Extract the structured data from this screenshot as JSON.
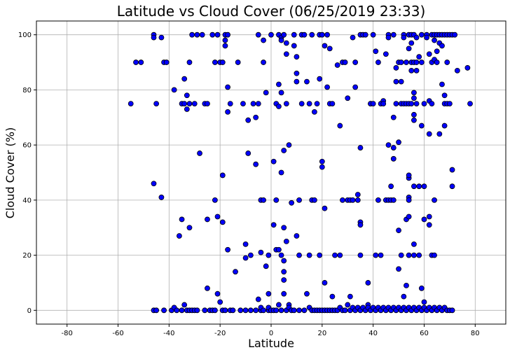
{
  "chart_data": {
    "type": "scatter",
    "title": "Latitude vs Cloud Cover (06/25/2019 23:33)",
    "xlabel": "Latitude",
    "ylabel": "Cloud Cover (%)",
    "xlim": [
      -92,
      92
    ],
    "ylim": [
      -5,
      105
    ],
    "xticks": [
      -80,
      -60,
      -40,
      -20,
      0,
      20,
      40,
      60,
      80
    ],
    "yticks": [
      0,
      20,
      40,
      60,
      80,
      100
    ],
    "grid": true,
    "marker_fill": "#0000ff",
    "marker_edge": "#000000",
    "points": [
      [
        -55,
        75
      ],
      [
        -53,
        90
      ],
      [
        -51,
        90
      ],
      [
        -46,
        100
      ],
      [
        -46,
        99
      ],
      [
        -45,
        75
      ],
      [
        -46,
        46
      ],
      [
        -43,
        41
      ],
      [
        -43,
        99
      ],
      [
        -42,
        90
      ],
      [
        -41,
        90
      ],
      [
        -38,
        80
      ],
      [
        -36,
        27
      ],
      [
        -35,
        33
      ],
      [
        -35,
        75
      ],
      [
        -34,
        75
      ],
      [
        -34,
        84
      ],
      [
        -33,
        78
      ],
      [
        -33,
        73
      ],
      [
        -32,
        75
      ],
      [
        -32,
        90
      ],
      [
        -32,
        30
      ],
      [
        -31,
        100
      ],
      [
        -30,
        75
      ],
      [
        -29,
        100
      ],
      [
        -28,
        57
      ],
      [
        -27,
        100
      ],
      [
        -26,
        75
      ],
      [
        -25,
        75
      ],
      [
        -25,
        33
      ],
      [
        -23,
        100
      ],
      [
        -22,
        90
      ],
      [
        -21,
        100
      ],
      [
        -20,
        90
      ],
      [
        -19,
        90
      ],
      [
        -18,
        100
      ],
      [
        -17,
        100
      ],
      [
        -22,
        40
      ],
      [
        -21,
        34
      ],
      [
        -19,
        32
      ],
      [
        -19,
        49
      ],
      [
        -18,
        98
      ],
      [
        -18,
        96
      ],
      [
        -17,
        81
      ],
      [
        -17,
        22
      ],
      [
        -17,
        72
      ],
      [
        -16,
        75
      ],
      [
        -13,
        90
      ],
      [
        -11,
        75
      ],
      [
        -10,
        24
      ],
      [
        -10,
        19
      ],
      [
        -9,
        57
      ],
      [
        -9,
        69
      ],
      [
        -8,
        20
      ],
      [
        -7,
        75
      ],
      [
        -6,
        53
      ],
      [
        -6,
        70
      ],
      [
        -5,
        100
      ],
      [
        -5,
        75
      ],
      [
        -4,
        40
      ],
      [
        -4,
        21
      ],
      [
        -3,
        98
      ],
      [
        -3,
        90
      ],
      [
        -3,
        40
      ],
      [
        -2,
        16
      ],
      [
        -2,
        79
      ],
      [
        -1,
        20
      ],
      [
        -1,
        6
      ],
      [
        0,
        100
      ],
      [
        1,
        54
      ],
      [
        1,
        31
      ],
      [
        2,
        22
      ],
      [
        2,
        75
      ],
      [
        2,
        40
      ],
      [
        3,
        74
      ],
      [
        3,
        22
      ],
      [
        3,
        100
      ],
      [
        3,
        82
      ],
      [
        4,
        99
      ],
      [
        4,
        98
      ],
      [
        4,
        79
      ],
      [
        4,
        50
      ],
      [
        4,
        20
      ],
      [
        5,
        100
      ],
      [
        5,
        58
      ],
      [
        5,
        14
      ],
      [
        5,
        11
      ],
      [
        5,
        6
      ],
      [
        5,
        30
      ],
      [
        6,
        97
      ],
      [
        6,
        93
      ],
      [
        6,
        25
      ],
      [
        6,
        75
      ],
      [
        7,
        2
      ],
      [
        7,
        60
      ],
      [
        8,
        39
      ],
      [
        9,
        100
      ],
      [
        9,
        96
      ],
      [
        10,
        92
      ],
      [
        10,
        86
      ],
      [
        10,
        83
      ],
      [
        10,
        27
      ],
      [
        11,
        40
      ],
      [
        11,
        20
      ],
      [
        12,
        100
      ],
      [
        12,
        75
      ],
      [
        13,
        100
      ],
      [
        14,
        83
      ],
      [
        14,
        6
      ],
      [
        15,
        75
      ],
      [
        15,
        20
      ],
      [
        16,
        100
      ],
      [
        16,
        40
      ],
      [
        17,
        40
      ],
      [
        17,
        72
      ],
      [
        18,
        75
      ],
      [
        19,
        100
      ],
      [
        19,
        84
      ],
      [
        19,
        20
      ],
      [
        20,
        100
      ],
      [
        20,
        54
      ],
      [
        20,
        52
      ],
      [
        21,
        96
      ],
      [
        21,
        10
      ],
      [
        21,
        37
      ],
      [
        22,
        100
      ],
      [
        22,
        81
      ],
      [
        23,
        75
      ],
      [
        23,
        95
      ],
      [
        24,
        75
      ],
      [
        24,
        5
      ],
      [
        25,
        20
      ],
      [
        26,
        89
      ],
      [
        27,
        67
      ],
      [
        27,
        20
      ],
      [
        28,
        90
      ],
      [
        28,
        40
      ],
      [
        29,
        90
      ],
      [
        30,
        40
      ],
      [
        30,
        77
      ],
      [
        31,
        5
      ],
      [
        31,
        40
      ],
      [
        32,
        99
      ],
      [
        32,
        40
      ],
      [
        33,
        90
      ],
      [
        33,
        81
      ],
      [
        34,
        42
      ],
      [
        34,
        40
      ],
      [
        35,
        59
      ],
      [
        35,
        32
      ],
      [
        35,
        31
      ],
      [
        35,
        20
      ],
      [
        35,
        100
      ],
      [
        36,
        100
      ],
      [
        37,
        100
      ],
      [
        38,
        10
      ],
      [
        38,
        2
      ],
      [
        39,
        75
      ],
      [
        39,
        75
      ],
      [
        40,
        100
      ],
      [
        40,
        75
      ],
      [
        41,
        94
      ],
      [
        41,
        20
      ],
      [
        42,
        90
      ],
      [
        42,
        40
      ],
      [
        43,
        75
      ],
      [
        43,
        20
      ],
      [
        44,
        76
      ],
      [
        44,
        75
      ],
      [
        45,
        93
      ],
      [
        45,
        40
      ],
      [
        46,
        100
      ],
      [
        46,
        99
      ],
      [
        46,
        60
      ],
      [
        46,
        40
      ],
      [
        47,
        45
      ],
      [
        47,
        40
      ],
      [
        48,
        70
      ],
      [
        48,
        59
      ],
      [
        48,
        55
      ],
      [
        48,
        40
      ],
      [
        48,
        100
      ],
      [
        49,
        88
      ],
      [
        49,
        83
      ],
      [
        49,
        75
      ],
      [
        50,
        90
      ],
      [
        50,
        61
      ],
      [
        50,
        29
      ],
      [
        50,
        15
      ],
      [
        51,
        90
      ],
      [
        51,
        83
      ],
      [
        51,
        75
      ],
      [
        51,
        20
      ],
      [
        52,
        100
      ],
      [
        52,
        99
      ],
      [
        52,
        75
      ],
      [
        52,
        5
      ],
      [
        53,
        90
      ],
      [
        53,
        75
      ],
      [
        53,
        33
      ],
      [
        53,
        9
      ],
      [
        54,
        100
      ],
      [
        54,
        95
      ],
      [
        54,
        75
      ],
      [
        54,
        48
      ],
      [
        54,
        49
      ],
      [
        54,
        41
      ],
      [
        54,
        40
      ],
      [
        54,
        34
      ],
      [
        54,
        20
      ],
      [
        55,
        100
      ],
      [
        55,
        90
      ],
      [
        55,
        87
      ],
      [
        55,
        75
      ],
      [
        55,
        97
      ],
      [
        56,
        100
      ],
      [
        56,
        90
      ],
      [
        56,
        77
      ],
      [
        56,
        79
      ],
      [
        56,
        71
      ],
      [
        56,
        69
      ],
      [
        56,
        45
      ],
      [
        56,
        24
      ],
      [
        56,
        20
      ],
      [
        57,
        99
      ],
      [
        57,
        90
      ],
      [
        57,
        87
      ],
      [
        57,
        75
      ],
      [
        58,
        92
      ],
      [
        58,
        45
      ],
      [
        58,
        20
      ],
      [
        59,
        100
      ],
      [
        59,
        90
      ],
      [
        59,
        67
      ],
      [
        59,
        8
      ],
      [
        60,
        75
      ],
      [
        60,
        45
      ],
      [
        60,
        33
      ],
      [
        60,
        3
      ],
      [
        61,
        100
      ],
      [
        61,
        99
      ],
      [
        62,
        93
      ],
      [
        62,
        76
      ],
      [
        62,
        64
      ],
      [
        62,
        34
      ],
      [
        62,
        31
      ],
      [
        63,
        100
      ],
      [
        63,
        90
      ],
      [
        63,
        75
      ],
      [
        63,
        20
      ],
      [
        64,
        100
      ],
      [
        64,
        98
      ],
      [
        64,
        91
      ],
      [
        64,
        40
      ],
      [
        64,
        20
      ],
      [
        65,
        100
      ],
      [
        65,
        94
      ],
      [
        65,
        90
      ],
      [
        66,
        100
      ],
      [
        66,
        97
      ],
      [
        66,
        64
      ],
      [
        67,
        100
      ],
      [
        67,
        96
      ],
      [
        67,
        82
      ],
      [
        68,
        100
      ],
      [
        68,
        75
      ],
      [
        68,
        67
      ],
      [
        68,
        78
      ],
      [
        69,
        100
      ],
      [
        69,
        90
      ],
      [
        69,
        75
      ],
      [
        70,
        100
      ],
      [
        70,
        75
      ],
      [
        71,
        100
      ],
      [
        71,
        51
      ],
      [
        71,
        45
      ],
      [
        72,
        100
      ],
      [
        73,
        87
      ],
      [
        77,
        88
      ],
      [
        78,
        75
      ],
      [
        -46,
        0
      ],
      [
        -45,
        0
      ],
      [
        -42,
        0
      ],
      [
        -39,
        0
      ],
      [
        -38,
        1
      ],
      [
        -37,
        0
      ],
      [
        -35,
        0
      ],
      [
        -34,
        2
      ],
      [
        -33,
        0
      ],
      [
        -32,
        0
      ],
      [
        -31,
        0
      ],
      [
        -30,
        0
      ],
      [
        -29,
        0
      ],
      [
        -26,
        0
      ],
      [
        -25,
        8
      ],
      [
        -24,
        0
      ],
      [
        -23,
        0
      ],
      [
        -22,
        0
      ],
      [
        -21,
        6
      ],
      [
        -20,
        3
      ],
      [
        -19,
        0
      ],
      [
        -18,
        0
      ],
      [
        -16,
        0
      ],
      [
        -15,
        0
      ],
      [
        -14,
        14
      ],
      [
        -12,
        0
      ],
      [
        -10,
        0
      ],
      [
        -8,
        0
      ],
      [
        -6,
        0
      ],
      [
        -5,
        4
      ],
      [
        -4,
        0
      ],
      [
        -4,
        1
      ],
      [
        -3,
        0
      ],
      [
        -1,
        0
      ],
      [
        -1,
        1
      ],
      [
        0,
        0
      ],
      [
        1,
        0
      ],
      [
        2,
        0
      ],
      [
        3,
        2
      ],
      [
        4,
        0
      ],
      [
        5,
        18
      ],
      [
        6,
        0
      ],
      [
        7,
        1
      ],
      [
        8,
        0
      ],
      [
        9,
        0
      ],
      [
        11,
        0
      ],
      [
        13,
        0
      ],
      [
        15,
        1
      ],
      [
        16,
        0
      ],
      [
        17,
        0
      ],
      [
        18,
        0
      ],
      [
        19,
        0
      ],
      [
        20,
        0
      ],
      [
        21,
        0
      ],
      [
        22,
        0
      ],
      [
        23,
        0
      ],
      [
        24,
        0
      ],
      [
        25,
        0
      ],
      [
        26,
        0
      ],
      [
        27,
        1
      ],
      [
        28,
        0
      ],
      [
        29,
        0
      ],
      [
        30,
        2
      ],
      [
        31,
        0
      ],
      [
        32,
        1
      ],
      [
        33,
        0
      ],
      [
        34,
        1
      ],
      [
        35,
        0
      ],
      [
        36,
        1
      ],
      [
        37,
        0
      ],
      [
        38,
        1
      ],
      [
        39,
        0
      ],
      [
        40,
        1
      ],
      [
        41,
        0
      ],
      [
        42,
        1
      ],
      [
        43,
        0
      ],
      [
        44,
        1
      ],
      [
        45,
        0
      ],
      [
        46,
        1
      ],
      [
        47,
        0
      ],
      [
        48,
        1
      ],
      [
        49,
        0
      ],
      [
        50,
        1
      ],
      [
        51,
        0
      ],
      [
        52,
        1
      ],
      [
        53,
        0
      ],
      [
        54,
        1
      ],
      [
        55,
        0
      ],
      [
        56,
        1
      ],
      [
        57,
        0
      ],
      [
        58,
        1
      ],
      [
        59,
        0
      ],
      [
        60,
        1
      ],
      [
        61,
        0
      ],
      [
        62,
        1
      ],
      [
        63,
        0
      ],
      [
        64,
        1
      ],
      [
        65,
        0
      ],
      [
        66,
        1
      ],
      [
        67,
        0
      ],
      [
        68,
        1
      ],
      [
        69,
        0
      ],
      [
        70,
        0
      ],
      [
        71,
        0
      ]
    ]
  }
}
